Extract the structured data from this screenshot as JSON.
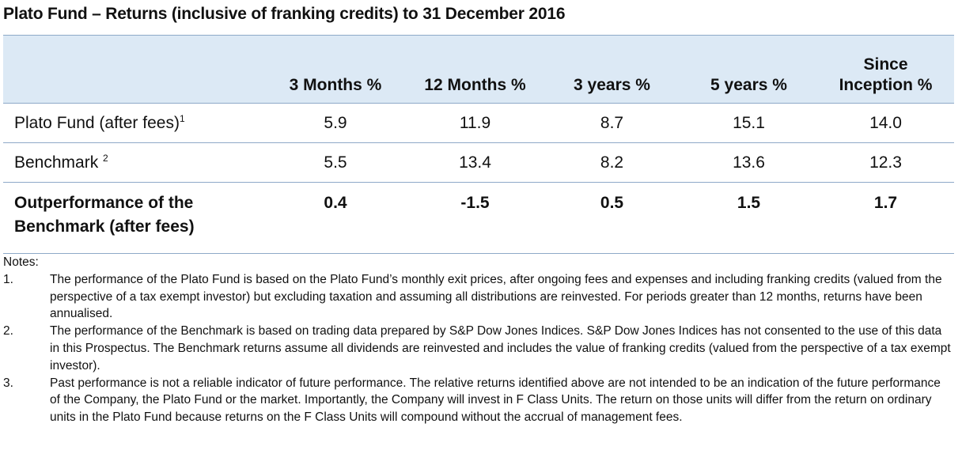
{
  "title": "Plato Fund – Returns (inclusive of franking credits) to 31 December 2016",
  "table": {
    "headers": [
      "",
      "3 Months %",
      "12 Months %",
      "3 years %",
      "5 years %",
      "Since Inception %"
    ],
    "header_lines": {
      "since_line1": "Since",
      "since_line2": "Inception %"
    },
    "rows": [
      {
        "label": "Plato Fund (after fees)",
        "sup": "1",
        "values": [
          "5.9",
          "11.9",
          "8.7",
          "15.1",
          "14.0"
        ]
      },
      {
        "label": "Benchmark ",
        "sup": "2",
        "values": [
          "5.5",
          "13.4",
          "8.2",
          "13.6",
          "12.3"
        ]
      },
      {
        "label_line1": "Outperformance of the",
        "label_line2": "Benchmark (after fees)",
        "values": [
          "0.4",
          "-1.5",
          "0.5",
          "1.5",
          "1.7"
        ]
      }
    ]
  },
  "notes": {
    "heading": "Notes:",
    "items": [
      {
        "num": "1.",
        "text": "The performance of the Plato Fund is based on the Plato Fund’s monthly exit prices, after ongoing fees and expenses and including franking credits (valued from the perspective of a tax exempt investor) but excluding taxation and assuming all distributions are reinvested. For periods greater than 12 months, returns have been annualised."
      },
      {
        "num": "2.",
        "text": "The performance of the Benchmark is based on trading data prepared by S&P Dow Jones Indices. S&P Dow Jones Indices has not consented to the use of this data in this Prospectus. The Benchmark returns assume all dividends are reinvested and includes the value of franking credits (valued from the perspective of a tax exempt investor)."
      },
      {
        "num": "3.",
        "text": "Past performance is not a reliable indicator of future performance. The relative returns identified above are not intended to be an indication of the future performance of the Company, the Plato Fund or the market. Importantly, the Company will invest in F Class Units. The return on those units will differ from the return on ordinary units in the Plato Fund because returns on the F Class Units will compound without the accrual of management fees."
      }
    ]
  }
}
